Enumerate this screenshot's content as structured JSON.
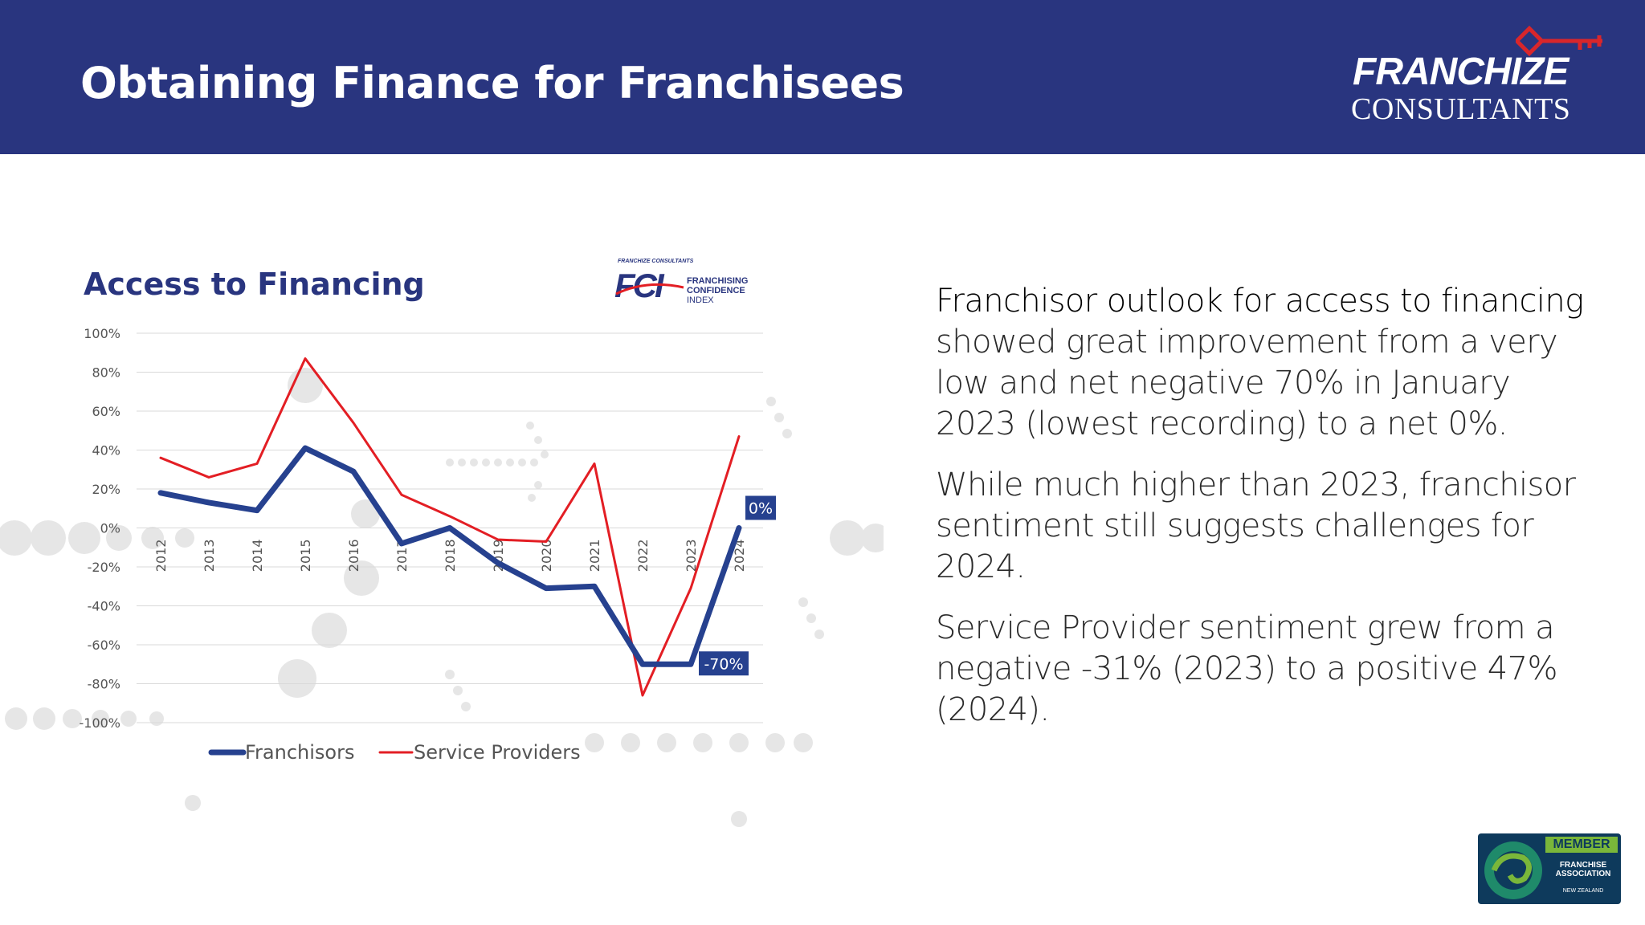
{
  "slide": {
    "title": "Obtaining Finance for Franchisees"
  },
  "brand": {
    "word1": "FRANCHIZE",
    "word2": "CONSULTANTS",
    "icon": "key-icon"
  },
  "fci_logo": {
    "small": "FRANCHIZE CONSULTANTS",
    "letters": "FCI",
    "line1": "FRANCHISING",
    "line2": "CONFIDENCE",
    "line3": "INDEX"
  },
  "colors": {
    "header": "#29357f",
    "franchisors": "#26418f",
    "service_providers": "#e31e24",
    "callout": "#26418f"
  },
  "chart_data": {
    "type": "line",
    "title": "Access to Financing",
    "x": [
      "2012",
      "2013",
      "2014",
      "2015",
      "2016",
      "2017",
      "2018",
      "2019",
      "2020",
      "2021",
      "2022",
      "2023",
      "2024"
    ],
    "y_ticks": [
      "100%",
      "80%",
      "60%",
      "40%",
      "20%",
      "0%",
      "-20%",
      "-40%",
      "-60%",
      "-80%",
      "-100%"
    ],
    "ylim": [
      -100,
      100
    ],
    "grid": true,
    "legend_position": "bottom",
    "series": [
      {
        "name": "Franchisors",
        "values": [
          18,
          13,
          9,
          41,
          29,
          -8,
          0,
          -18,
          -31,
          -30,
          -70,
          -70,
          0
        ]
      },
      {
        "name": "Service Providers",
        "values": [
          36,
          26,
          33,
          87,
          54,
          17,
          6,
          -6,
          -7,
          33,
          -86,
          -31,
          47
        ]
      }
    ],
    "annotations": [
      {
        "label": "0%",
        "series": "Franchisors",
        "x": "2024"
      },
      {
        "label": "-70%",
        "series": "Franchisors",
        "x": "2023"
      }
    ]
  },
  "body": {
    "p1_lead": "Franchisor outlook for access to financing",
    "p1_rest": " showed great improvement from a very low and net negative 70% in January 2023 (lowest recording) to a net 0%.",
    "p2": "While much higher than 2023, franchisor sentiment still suggests challenges for 2024.",
    "p3": "Service Provider sentiment grew from a negative -31% (2023) to a positive 47% (2024)."
  },
  "member_badge": {
    "banner": "MEMBER",
    "org": "FRANCHISE ASSOCIATION",
    "country": "NEW ZEALAND"
  }
}
